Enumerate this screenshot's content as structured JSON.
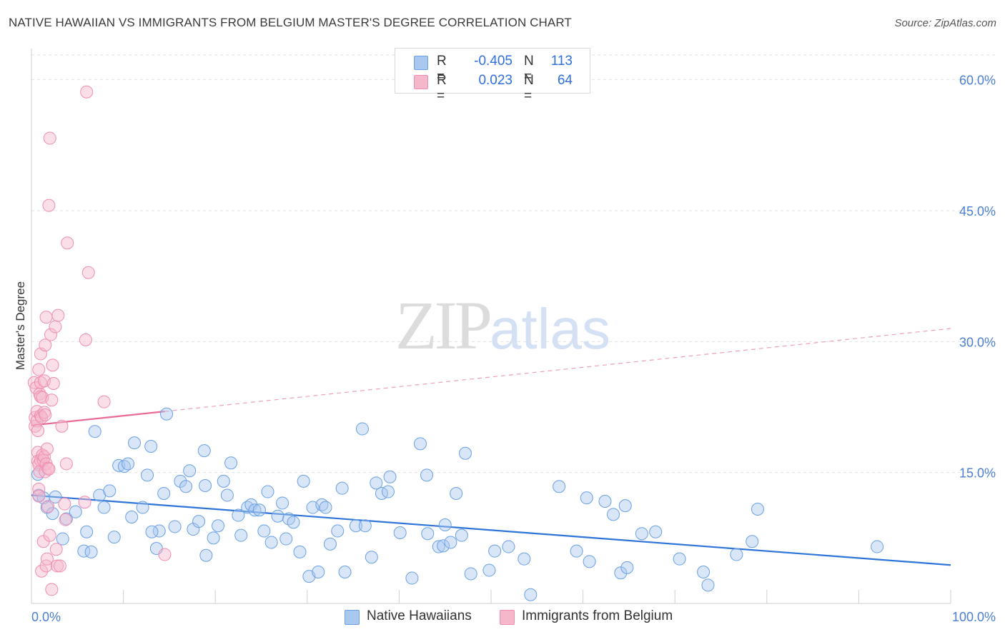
{
  "header": {
    "title": "NATIVE HAWAIIAN VS IMMIGRANTS FROM BELGIUM MASTER'S DEGREE CORRELATION CHART",
    "source": "Source: ZipAtlas.com"
  },
  "watermark": {
    "zip": "ZIP",
    "atlas": "atlas"
  },
  "legend": {
    "rows": [
      {
        "r_label": "R =",
        "r_value": "-0.405",
        "n_label": "N =",
        "n_value": "113",
        "color": "#a9c8f0"
      },
      {
        "r_label": "R =",
        "r_value": "0.023",
        "n_label": "N =",
        "n_value": "64",
        "color": "#f5b8cb"
      }
    ]
  },
  "bottom_legend": {
    "items": [
      {
        "label": "Native Hawaiians",
        "color": "#a9c8f0"
      },
      {
        "label": "Immigrants from Belgium",
        "color": "#f5b8cb"
      }
    ]
  },
  "chart_data": {
    "type": "scatter",
    "title": "NATIVE HAWAIIAN VS IMMIGRANTS FROM BELGIUM MASTER'S DEGREE CORRELATION CHART",
    "xlabel": "",
    "ylabel": "Master's Degree",
    "xlim": [
      0,
      100
    ],
    "ylim": [
      0,
      63
    ],
    "x_tick_labels": [
      "0.0%",
      "100.0%"
    ],
    "y_ticks": [
      15,
      30,
      45,
      60
    ],
    "y_tick_labels": [
      "15.0%",
      "30.0%",
      "45.0%",
      "60.0%"
    ],
    "grid": true,
    "series": [
      {
        "name": "Native Hawaiians",
        "color": "#6aa0e4",
        "trend": {
          "x": [
            0,
            100
          ],
          "y": [
            12.4,
            4.4
          ]
        },
        "points": [
          [
            0.7,
            14.8
          ],
          [
            0.8,
            12.4
          ],
          [
            1.3,
            12.1
          ],
          [
            1.7,
            11.0
          ],
          [
            2.3,
            10.3
          ],
          [
            2.6,
            12.2
          ],
          [
            3.4,
            7.4
          ],
          [
            3.8,
            9.7
          ],
          [
            4.8,
            10.5
          ],
          [
            5.7,
            6.0
          ],
          [
            6.0,
            8.2
          ],
          [
            6.5,
            5.9
          ],
          [
            6.9,
            19.7
          ],
          [
            7.4,
            12.4
          ],
          [
            7.9,
            11.0
          ],
          [
            8.5,
            12.9
          ],
          [
            9.0,
            7.6
          ],
          [
            9.5,
            15.8
          ],
          [
            10.1,
            15.7
          ],
          [
            10.5,
            16.0
          ],
          [
            10.9,
            9.9
          ],
          [
            11.2,
            18.4
          ],
          [
            12.1,
            11.0
          ],
          [
            12.6,
            14.7
          ],
          [
            13.0,
            18.0
          ],
          [
            13.6,
            6.3
          ],
          [
            13.9,
            8.3
          ],
          [
            14.4,
            12.6
          ],
          [
            14.7,
            21.7
          ],
          [
            15.6,
            8.8
          ],
          [
            16.2,
            14.0
          ],
          [
            16.8,
            13.4
          ],
          [
            17.2,
            15.2
          ],
          [
            17.6,
            8.5
          ],
          [
            18.2,
            9.4
          ],
          [
            18.8,
            17.5
          ],
          [
            18.9,
            13.5
          ],
          [
            19.8,
            7.5
          ],
          [
            20.3,
            8.9
          ],
          [
            20.9,
            14.0
          ],
          [
            21.3,
            12.4
          ],
          [
            21.7,
            16.1
          ],
          [
            22.5,
            10.1
          ],
          [
            22.8,
            7.8
          ],
          [
            23.5,
            11.0
          ],
          [
            23.9,
            11.3
          ],
          [
            24.3,
            10.7
          ],
          [
            24.8,
            10.7
          ],
          [
            25.3,
            8.3
          ],
          [
            25.7,
            12.8
          ],
          [
            26.1,
            7.0
          ],
          [
            26.8,
            10.0
          ],
          [
            27.3,
            11.5
          ],
          [
            27.7,
            7.4
          ],
          [
            28.0,
            9.7
          ],
          [
            28.5,
            9.3
          ],
          [
            29.2,
            5.9
          ],
          [
            29.6,
            14.0
          ],
          [
            30.2,
            3.1
          ],
          [
            30.6,
            11.0
          ],
          [
            31.2,
            3.6
          ],
          [
            31.6,
            11.3
          ],
          [
            32.0,
            11.0
          ],
          [
            32.5,
            6.8
          ],
          [
            33.3,
            8.3
          ],
          [
            33.8,
            13.2
          ],
          [
            34.1,
            3.6
          ],
          [
            35.3,
            8.9
          ],
          [
            36.3,
            8.9
          ],
          [
            37.0,
            5.3
          ],
          [
            37.5,
            13.8
          ],
          [
            38.1,
            12.6
          ],
          [
            38.8,
            12.8
          ],
          [
            40.1,
            8.1
          ],
          [
            41.4,
            2.9
          ],
          [
            42.3,
            18.3
          ],
          [
            43.0,
            14.7
          ],
          [
            43.1,
            8.0
          ],
          [
            44.3,
            6.5
          ],
          [
            44.8,
            6.6
          ],
          [
            45.0,
            9.0
          ],
          [
            45.6,
            7.0
          ],
          [
            46.2,
            12.6
          ],
          [
            46.8,
            7.8
          ],
          [
            47.2,
            17.2
          ],
          [
            47.8,
            3.4
          ],
          [
            49.8,
            3.8
          ],
          [
            50.4,
            6.0
          ],
          [
            51.9,
            6.5
          ],
          [
            53.6,
            5.1
          ],
          [
            54.3,
            1.0
          ],
          [
            57.4,
            13.4
          ],
          [
            59.3,
            6.0
          ],
          [
            60.4,
            12.1
          ],
          [
            60.7,
            4.8
          ],
          [
            62.4,
            11.7
          ],
          [
            63.3,
            10.2
          ],
          [
            64.1,
            3.5
          ],
          [
            64.6,
            11.2
          ],
          [
            64.8,
            4.1
          ],
          [
            66.4,
            8.0
          ],
          [
            67.9,
            8.2
          ],
          [
            70.5,
            5.1
          ],
          [
            73.1,
            3.6
          ],
          [
            73.6,
            2.1
          ],
          [
            76.7,
            5.6
          ],
          [
            78.4,
            7.1
          ],
          [
            79.0,
            10.8
          ],
          [
            92.0,
            6.5
          ],
          [
            36.0,
            20.0
          ],
          [
            13.1,
            8.2
          ],
          [
            19.0,
            5.5
          ],
          [
            39.0,
            14.5
          ]
        ]
      },
      {
        "name": "Immigrants from Belgium",
        "color": "#f08cb0",
        "trend": {
          "x": [
            0,
            14.5
          ],
          "y": [
            20.4,
            22.0
          ]
        },
        "trend_dashed": {
          "x": [
            14.5,
            100
          ],
          "y": [
            22.0,
            31.5
          ]
        },
        "points": [
          [
            0.3,
            25.3
          ],
          [
            0.4,
            21.3
          ],
          [
            0.4,
            20.3
          ],
          [
            0.5,
            24.7
          ],
          [
            0.6,
            22.0
          ],
          [
            0.6,
            20.9
          ],
          [
            0.7,
            19.8
          ],
          [
            0.7,
            17.3
          ],
          [
            0.7,
            16.3
          ],
          [
            0.8,
            15.9
          ],
          [
            0.8,
            13.1
          ],
          [
            0.8,
            12.3
          ],
          [
            0.8,
            26.8
          ],
          [
            0.9,
            24.0
          ],
          [
            0.9,
            15.1
          ],
          [
            1.0,
            28.6
          ],
          [
            1.0,
            25.3
          ],
          [
            1.0,
            23.7
          ],
          [
            1.0,
            21.5
          ],
          [
            1.0,
            16.4
          ],
          [
            1.1,
            3.7
          ],
          [
            1.1,
            21.3
          ],
          [
            1.2,
            23.6
          ],
          [
            1.2,
            17.0
          ],
          [
            1.3,
            16.4
          ],
          [
            1.3,
            7.1
          ],
          [
            1.4,
            25.5
          ],
          [
            1.4,
            21.9
          ],
          [
            1.4,
            16.8
          ],
          [
            1.5,
            29.6
          ],
          [
            1.5,
            21.6
          ],
          [
            1.5,
            15.1
          ],
          [
            1.6,
            32.8
          ],
          [
            1.6,
            16.0
          ],
          [
            1.6,
            4.3
          ],
          [
            1.7,
            5.1
          ],
          [
            1.7,
            17.7
          ],
          [
            1.8,
            15.5
          ],
          [
            1.8,
            11.1
          ],
          [
            1.9,
            45.6
          ],
          [
            1.9,
            15.4
          ],
          [
            2.0,
            53.3
          ],
          [
            2.0,
            7.8
          ],
          [
            2.1,
            30.8
          ],
          [
            2.2,
            23.3
          ],
          [
            2.2,
            1.6
          ],
          [
            2.3,
            27.3
          ],
          [
            2.4,
            25.2
          ],
          [
            2.6,
            31.7
          ],
          [
            2.7,
            6.2
          ],
          [
            2.8,
            4.3
          ],
          [
            2.9,
            33.0
          ],
          [
            3.1,
            4.3
          ],
          [
            3.3,
            20.3
          ],
          [
            3.6,
            11.4
          ],
          [
            3.7,
            9.6
          ],
          [
            3.8,
            16.0
          ],
          [
            3.9,
            41.3
          ],
          [
            5.8,
            11.6
          ],
          [
            5.9,
            30.2
          ],
          [
            6.0,
            58.6
          ],
          [
            6.2,
            37.9
          ],
          [
            7.9,
            23.1
          ],
          [
            14.5,
            5.6
          ]
        ]
      }
    ]
  }
}
